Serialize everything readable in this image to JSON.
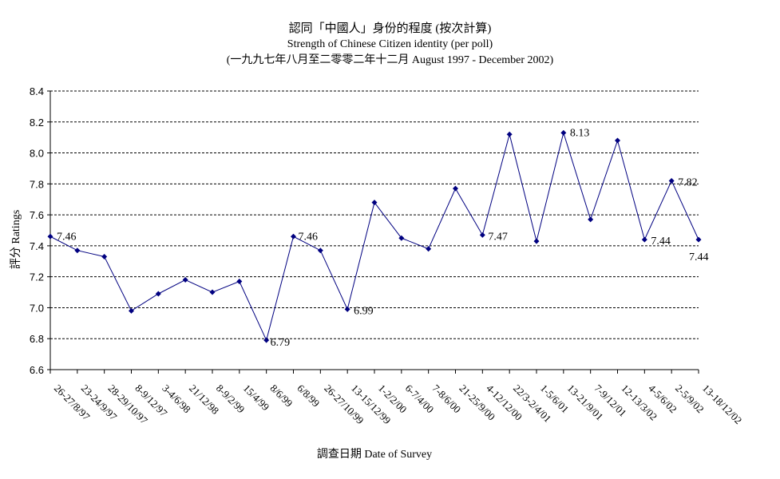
{
  "chart_data": {
    "type": "line",
    "title": "認同「中國人」身份的程度 (按次計算)",
    "subtitle": "Strength of Chinese Citizen identity (per poll)",
    "subtitle2": "(一九九七年八月至二零零二年十二月 August 1997 - December 2002)",
    "xlabel": "調查日期 Date of Survey",
    "ylabel": "評分 Ratings",
    "ylim": [
      6.6,
      8.4
    ],
    "yticks": [
      "6.6",
      "6.8",
      "7.0",
      "7.2",
      "7.4",
      "7.6",
      "7.8",
      "8.0",
      "8.2",
      "8.4"
    ],
    "grid": "horizontal dashed",
    "line_color": "#000080",
    "categories": [
      "26-27/8/97",
      "23-24/9/97",
      "28-29/10/97",
      "8-9/12/97",
      "3-4/6/98",
      "21/12/98",
      "8-9/2/99",
      "15/4/99",
      "8/6/99",
      "6/8/99",
      "26-27/10/99",
      "13-15/12/99",
      "1-2/2/00",
      "6-7/4/00",
      "7-8/6/00",
      "21-25/9/00",
      "4-12/12/00",
      "22/3-2/4/01",
      "1-5/6/01",
      "13-21/9/01",
      "7-9/12/01",
      "12-13/3/02",
      "4-5/6/02",
      "2-5/9/02",
      "13-18/12/02"
    ],
    "values": [
      7.46,
      7.37,
      7.33,
      6.98,
      7.09,
      7.18,
      7.1,
      7.17,
      6.79,
      7.46,
      7.37,
      6.99,
      7.68,
      7.45,
      7.38,
      7.77,
      7.47,
      8.12,
      7.43,
      8.13,
      7.57,
      8.08,
      7.44,
      7.82,
      7.44
    ],
    "data_labels": [
      {
        "index": 0,
        "text": "7.46"
      },
      {
        "index": 8,
        "text": "6.79"
      },
      {
        "index": 9,
        "text": "7.46"
      },
      {
        "index": 11,
        "text": "6.99"
      },
      {
        "index": 16,
        "text": "7.47"
      },
      {
        "index": 19,
        "text": "8.13"
      },
      {
        "index": 22,
        "text": "7.44"
      },
      {
        "index": 23,
        "text": "7.82"
      },
      {
        "index": 24,
        "text": "7.44"
      }
    ]
  }
}
